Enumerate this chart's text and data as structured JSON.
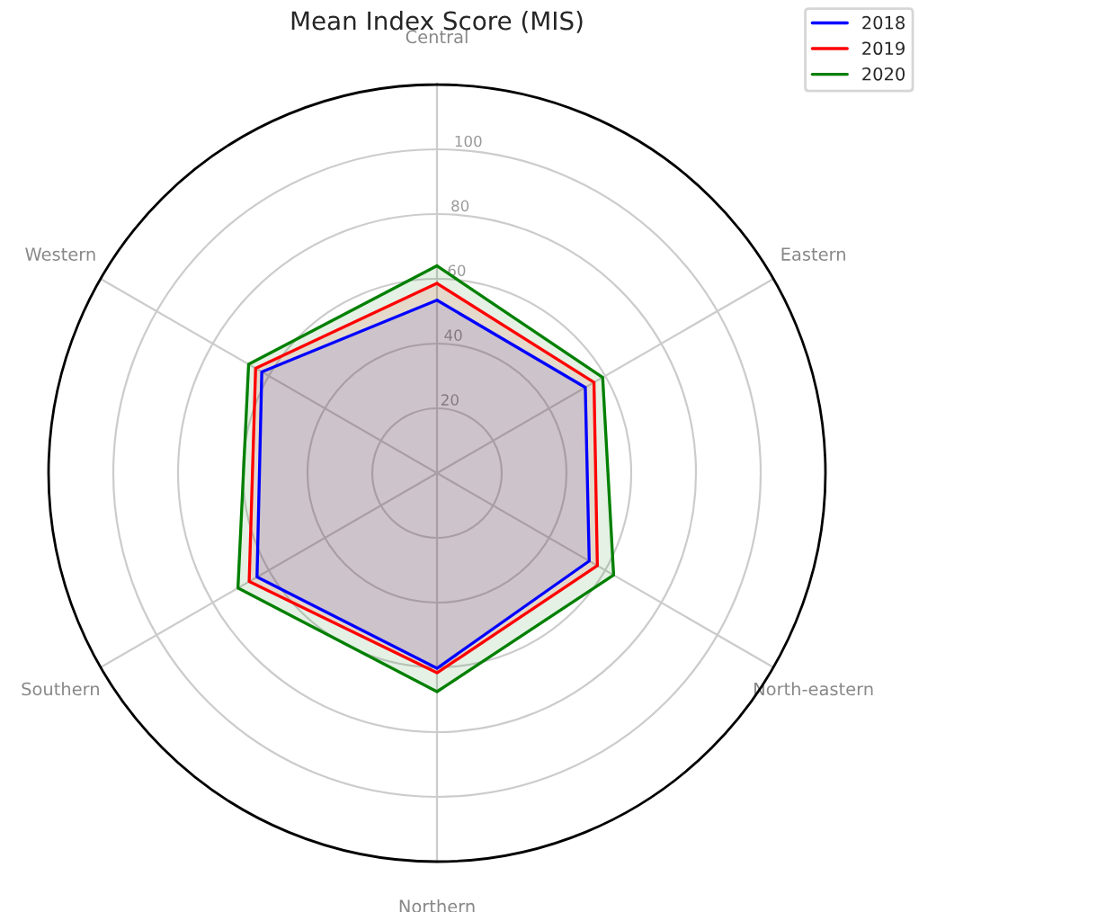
{
  "chart_data": {
    "type": "radar",
    "title": "Mean Index Score (MIS)",
    "categories": [
      "Central",
      "Eastern",
      "North-eastern",
      "Northern",
      "Southern",
      "Western"
    ],
    "series": [
      {
        "name": "2018",
        "color": "#0000ff",
        "values": [
          53.4,
          52.9,
          54.3,
          60.3,
          64.2,
          62.5
        ]
      },
      {
        "name": "2019",
        "color": "#ff0000",
        "values": [
          58.6,
          56,
          57.2,
          61.7,
          67,
          64.7
        ]
      },
      {
        "name": "2020",
        "color": "#008000",
        "values": [
          64,
          59.1,
          63,
          67.5,
          71,
          67.2
        ]
      }
    ],
    "ylim": [
      0,
      120
    ],
    "yticks": [
      20,
      40,
      60,
      80,
      100
    ],
    "grid": true,
    "legend": "top right",
    "marker": "none",
    "line_style": "solid"
  }
}
